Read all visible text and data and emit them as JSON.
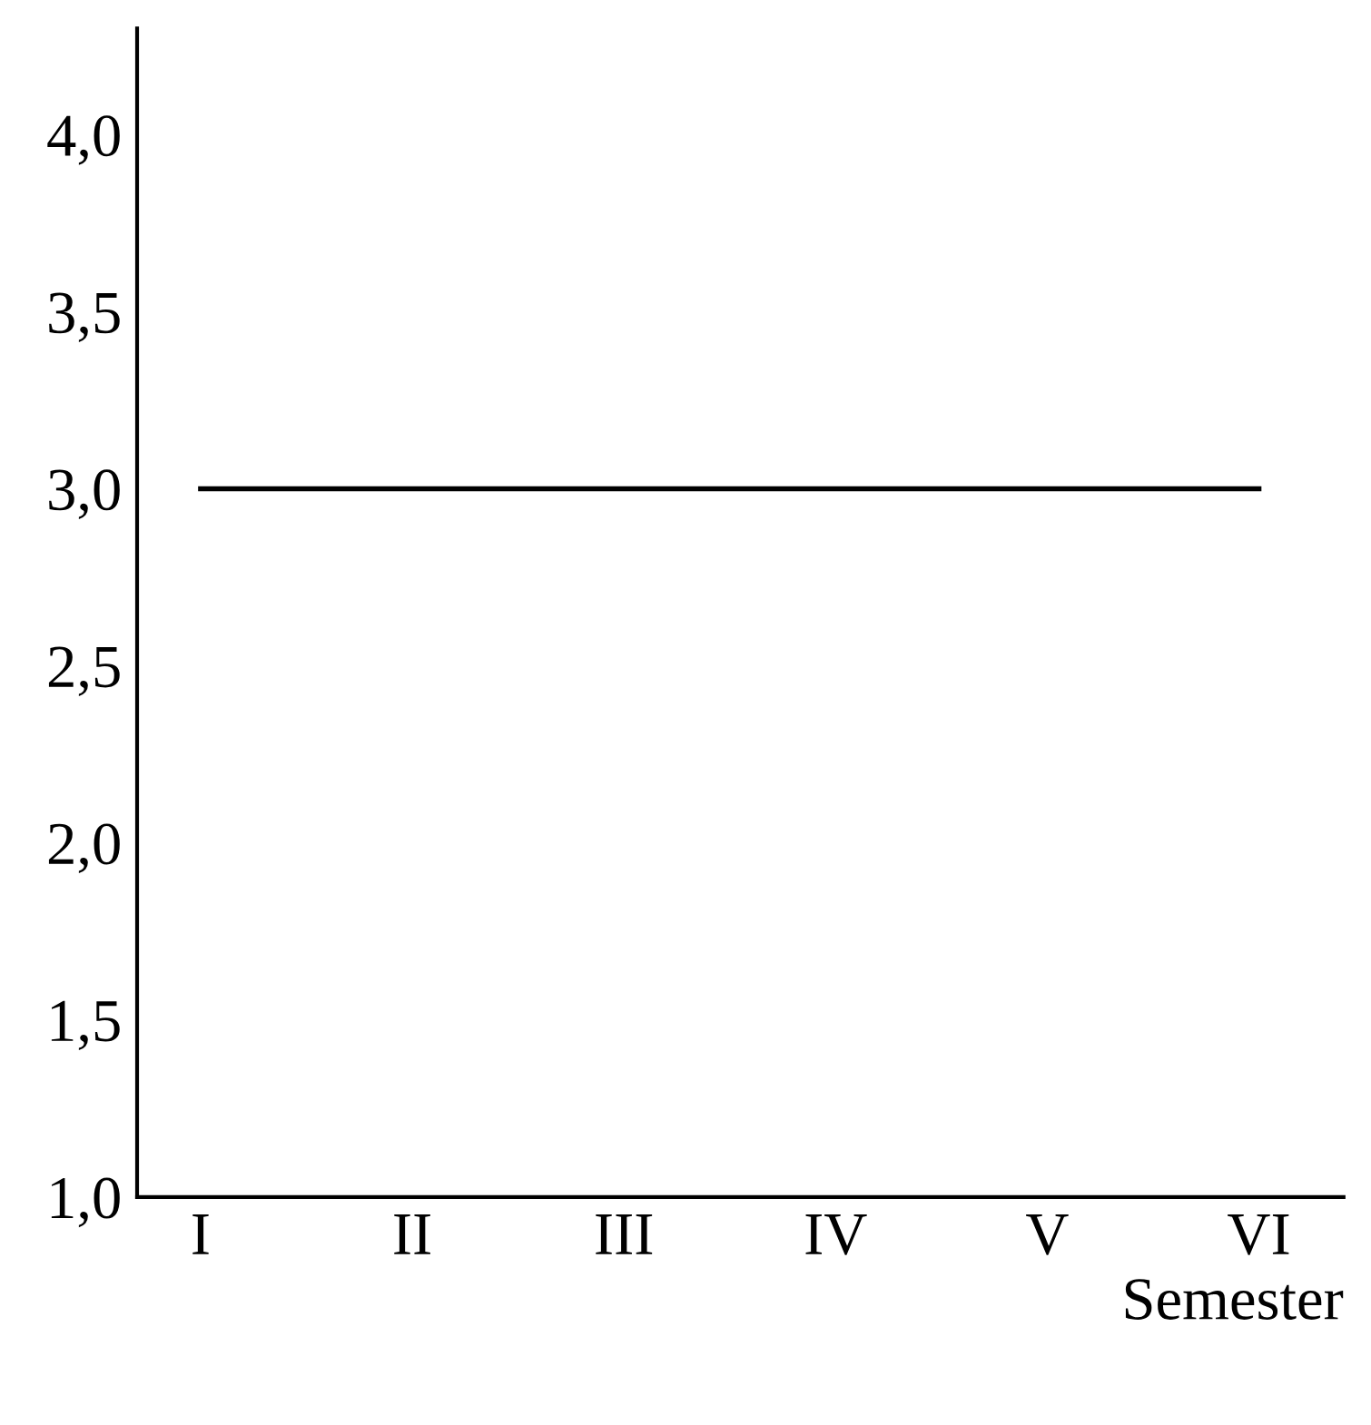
{
  "chart_data": {
    "type": "line",
    "xlabel": "Semester",
    "categories": [
      "I",
      "II",
      "III",
      "IV",
      "V",
      "VI"
    ],
    "series": [
      {
        "color": "#000000",
        "values": [
          3.0,
          3.0,
          3.0,
          3.0,
          3.0,
          3.0
        ]
      }
    ],
    "ylim": [
      1.0,
      4.3
    ],
    "yticks": [
      {
        "value": 1.0,
        "label": "1,0"
      },
      {
        "value": 1.5,
        "label": "1,5"
      },
      {
        "value": 2.0,
        "label": "2,0"
      },
      {
        "value": 2.5,
        "label": "2,5"
      },
      {
        "value": 3.0,
        "label": "3,0"
      },
      {
        "value": 3.5,
        "label": "3,5"
      },
      {
        "value": 4.0,
        "label": "4,0"
      }
    ],
    "grid": false,
    "legend": false
  }
}
